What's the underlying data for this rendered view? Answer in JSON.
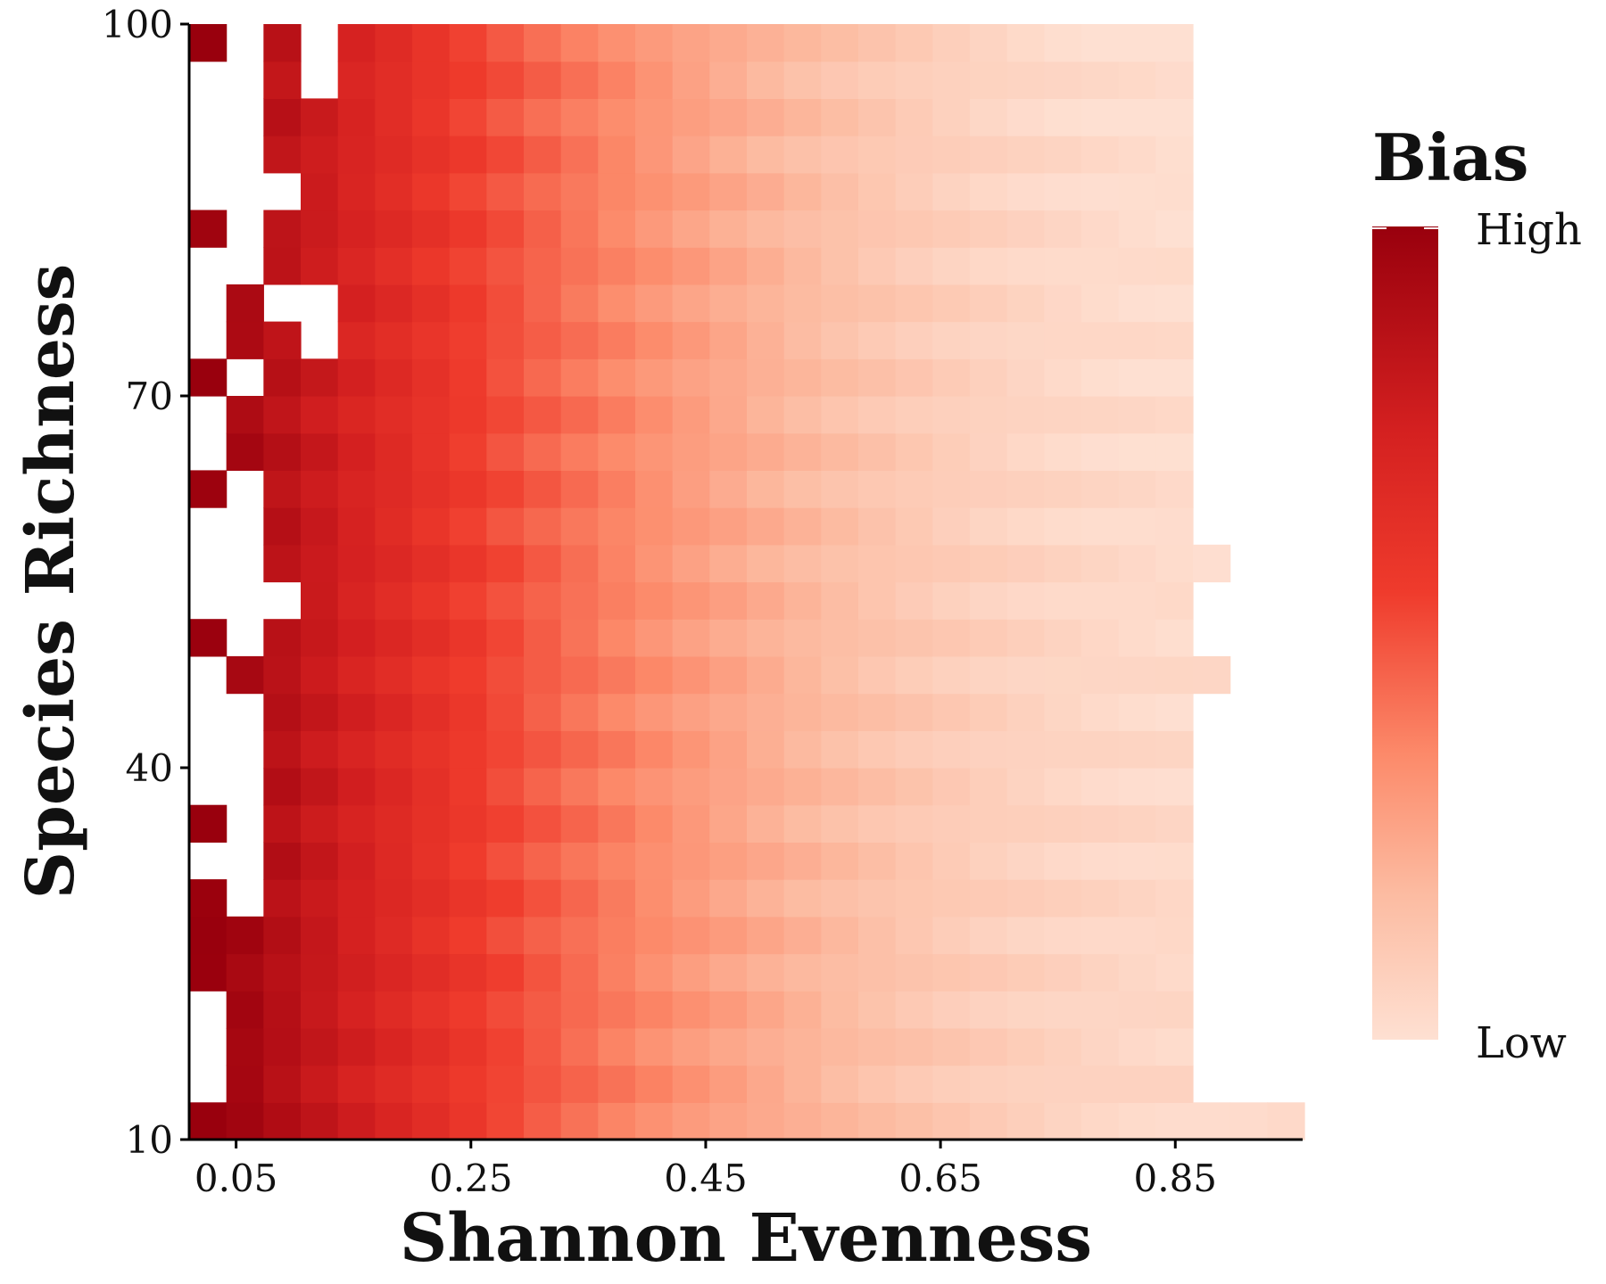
{
  "chart_data": {
    "type": "heatmap",
    "xlabel": "Shannon Evenness",
    "ylabel": "Species Richness",
    "x_ticks": [
      0.05,
      0.25,
      0.45,
      0.65,
      0.85
    ],
    "y_ticks": [
      10,
      40,
      70,
      100
    ],
    "x_tick_labels": [
      "0.05",
      "0.25",
      "0.45",
      "0.65",
      "0.85"
    ],
    "y_tick_labels": [
      "10",
      "40",
      "70",
      "100"
    ],
    "xlim": [
      0.01,
      0.96
    ],
    "ylim": [
      10,
      100
    ],
    "x_bin_width": 0.0317,
    "y_bin_width": 3,
    "grid": false,
    "legend": {
      "title": "Bias",
      "high_label": "High",
      "low_label": "Low",
      "position": "right",
      "color_high": "#99000d",
      "color_mid": "#ef3b2c",
      "color_low": "#fee0d2"
    },
    "value_description": "relative bias 0 (Low) to 1 (High); decreases with evenness, slightly higher at low richness",
    "missing_cells": [
      [
        0,
        28
      ],
      [
        0,
        27
      ],
      [
        0,
        26
      ],
      [
        0,
        25
      ],
      [
        0,
        23
      ],
      [
        0,
        22
      ],
      [
        0,
        21
      ],
      [
        0,
        19
      ],
      [
        0,
        18
      ],
      [
        0,
        16
      ],
      [
        0,
        15
      ],
      [
        0,
        14
      ],
      [
        0,
        12
      ],
      [
        0,
        11
      ],
      [
        0,
        10
      ],
      [
        0,
        9
      ],
      [
        0,
        7
      ],
      [
        0,
        3
      ],
      [
        0,
        2
      ],
      [
        0,
        1
      ],
      [
        1,
        29
      ],
      [
        1,
        28
      ],
      [
        1,
        27
      ],
      [
        1,
        26
      ],
      [
        1,
        25
      ],
      [
        1,
        24
      ],
      [
        1,
        23
      ],
      [
        1,
        20
      ],
      [
        1,
        17
      ],
      [
        1,
        16
      ],
      [
        1,
        15
      ],
      [
        1,
        14
      ],
      [
        1,
        13
      ],
      [
        1,
        11
      ],
      [
        1,
        10
      ],
      [
        1,
        9
      ],
      [
        1,
        8
      ],
      [
        1,
        7
      ],
      [
        1,
        6
      ],
      [
        2,
        25
      ],
      [
        2,
        22
      ],
      [
        2,
        14
      ],
      [
        3,
        29
      ],
      [
        3,
        28
      ],
      [
        3,
        22
      ],
      [
        3,
        21
      ],
      [
        27,
        29
      ],
      [
        27,
        28
      ],
      [
        27,
        27
      ],
      [
        27,
        26
      ],
      [
        27,
        25
      ],
      [
        27,
        24
      ],
      [
        27,
        23
      ],
      [
        27,
        22
      ],
      [
        27,
        21
      ],
      [
        27,
        20
      ],
      [
        27,
        19
      ],
      [
        27,
        18
      ],
      [
        27,
        17
      ],
      [
        27,
        16
      ],
      [
        27,
        14
      ],
      [
        27,
        13
      ],
      [
        27,
        11
      ],
      [
        27,
        10
      ],
      [
        27,
        9
      ],
      [
        27,
        8
      ],
      [
        27,
        7
      ],
      [
        27,
        6
      ],
      [
        27,
        5
      ],
      [
        27,
        4
      ],
      [
        27,
        3
      ],
      [
        27,
        2
      ],
      [
        27,
        1
      ],
      [
        28,
        29
      ],
      [
        28,
        28
      ],
      [
        28,
        27
      ],
      [
        28,
        26
      ],
      [
        28,
        25
      ],
      [
        28,
        24
      ],
      [
        28,
        23
      ],
      [
        28,
        22
      ],
      [
        28,
        21
      ],
      [
        28,
        20
      ],
      [
        28,
        19
      ],
      [
        28,
        18
      ],
      [
        28,
        17
      ],
      [
        28,
        16
      ],
      [
        28,
        15
      ],
      [
        28,
        14
      ],
      [
        28,
        13
      ],
      [
        28,
        12
      ],
      [
        28,
        11
      ],
      [
        28,
        10
      ],
      [
        28,
        9
      ],
      [
        28,
        8
      ],
      [
        28,
        7
      ],
      [
        28,
        6
      ],
      [
        28,
        5
      ],
      [
        28,
        4
      ],
      [
        28,
        3
      ],
      [
        28,
        2
      ],
      [
        28,
        1
      ],
      [
        29,
        29
      ],
      [
        29,
        28
      ],
      [
        29,
        27
      ],
      [
        29,
        26
      ],
      [
        29,
        25
      ],
      [
        29,
        24
      ],
      [
        29,
        23
      ],
      [
        29,
        22
      ],
      [
        29,
        21
      ],
      [
        29,
        20
      ],
      [
        29,
        19
      ],
      [
        29,
        18
      ],
      [
        29,
        17
      ],
      [
        29,
        16
      ],
      [
        29,
        15
      ],
      [
        29,
        14
      ],
      [
        29,
        13
      ],
      [
        29,
        12
      ],
      [
        29,
        11
      ],
      [
        29,
        10
      ],
      [
        29,
        9
      ],
      [
        29,
        8
      ],
      [
        29,
        7
      ],
      [
        29,
        6
      ],
      [
        29,
        5
      ],
      [
        29,
        4
      ],
      [
        29,
        3
      ],
      [
        29,
        2
      ],
      [
        29,
        1
      ]
    ]
  }
}
